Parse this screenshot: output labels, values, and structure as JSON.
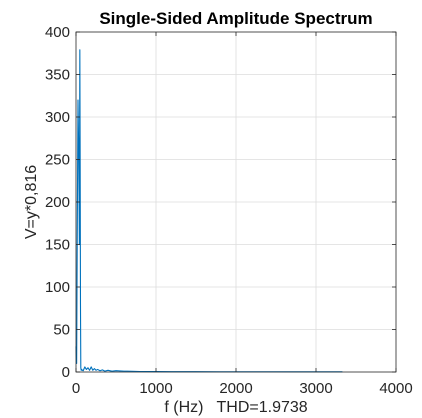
{
  "chart_data": {
    "type": "line",
    "title": "Single-Sided Amplitude Spectrum",
    "xlabel": "f (Hz)   THD=1.9738",
    "ylabel": "V=y*0,816",
    "xlim": [
      0,
      4000
    ],
    "ylim": [
      0,
      400
    ],
    "xticks": [
      0,
      1000,
      2000,
      3000,
      4000
    ],
    "yticks": [
      0,
      50,
      100,
      150,
      200,
      250,
      300,
      350,
      400
    ],
    "grid": true,
    "legend": "none",
    "series": [
      {
        "color": "#0072BD",
        "x": [
          0,
          8,
          15,
          25,
          35,
          42,
          48,
          52,
          56,
          60,
          65,
          72,
          80,
          90,
          110,
          130,
          150,
          170,
          190,
          210,
          230,
          250,
          270,
          300,
          330,
          360,
          400,
          450,
          500,
          600,
          700,
          800,
          1000,
          1200,
          1500,
          1800,
          2100,
          2400,
          2700,
          3000,
          3200,
          3330
        ],
        "y": [
          30,
          10,
          150,
          320,
          250,
          150,
          379,
          250,
          80,
          5,
          2,
          3,
          2,
          1.5,
          6,
          3,
          5,
          2,
          6,
          2,
          4,
          2,
          3,
          1.5,
          2.5,
          1,
          2,
          1,
          1.5,
          1,
          0.8,
          0.6,
          0.5,
          0.4,
          0.4,
          0.3,
          0.3,
          0.3,
          0.2,
          0.2,
          0.2,
          0.2
        ]
      }
    ]
  }
}
